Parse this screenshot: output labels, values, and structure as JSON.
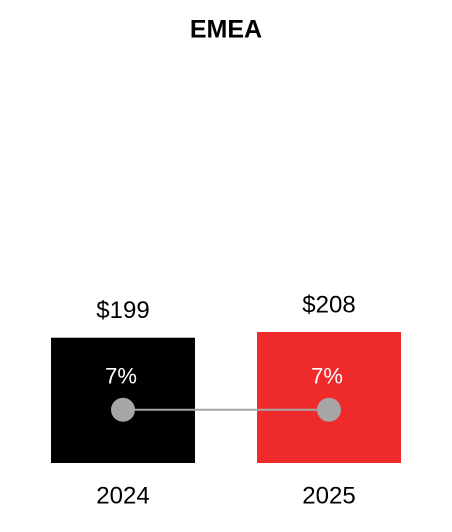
{
  "chart_data": {
    "type": "bar",
    "title": "EMEA",
    "categories": [
      "2024",
      "2025"
    ],
    "values": [
      199,
      208
    ],
    "value_labels": [
      "$199",
      "$208"
    ],
    "colors": [
      "#000000",
      "#ee2a2a"
    ],
    "ylim": [
      0,
      640
    ],
    "line": {
      "values": [
        7,
        7
      ],
      "value_labels": [
        "7%",
        "7%"
      ],
      "color": "#a6a6a6",
      "axis": "y2"
    },
    "y2lim": [
      0,
      53
    ]
  }
}
